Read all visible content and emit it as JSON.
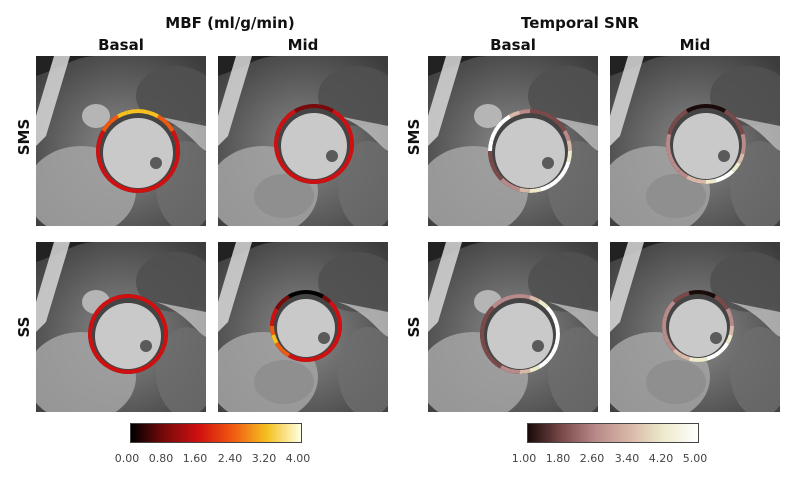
{
  "panels": {
    "mbf": {
      "title": "MBF (ml/g/min)",
      "col_basal": "Basal",
      "col_mid": "Mid",
      "colorbar_ticks": [
        "0.00",
        "0.80",
        "1.60",
        "2.40",
        "3.20",
        "4.00"
      ],
      "colormap": "hot",
      "colors": [
        "#000000",
        "#7a0a0a",
        "#d01010",
        "#f05a10",
        "#f5c020",
        "#ffffe0"
      ]
    },
    "tsnr": {
      "title": "Temporal SNR",
      "col_basal": "Basal",
      "col_mid": "Mid",
      "colorbar_ticks": [
        "1.00",
        "1.80",
        "2.60",
        "3.40",
        "4.20",
        "5.00"
      ],
      "colormap": "pink",
      "colors": [
        "#1a0a0a",
        "#7a4a4a",
        "#b98a8a",
        "#d8b8a8",
        "#eeeacc",
        "#ffffff"
      ]
    }
  },
  "rows": {
    "sms": "SMS",
    "ss": "SS"
  }
}
